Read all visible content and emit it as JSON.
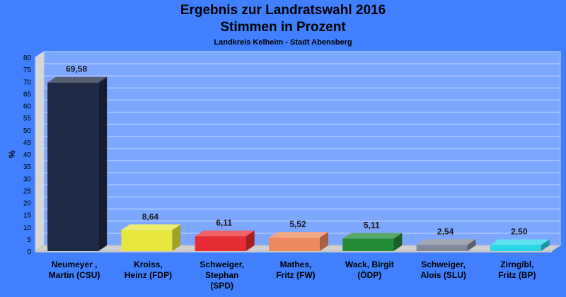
{
  "chart_data": {
    "type": "bar",
    "title": "Ergebnis zur Landratswahl 2016",
    "title2": "Stimmen in Prozent",
    "subtitle": "Landkreis Kelheim - Stadt Abensberg",
    "ylabel": "%",
    "xlabel": "",
    "ylim": [
      0,
      80
    ],
    "yticks": [
      "0",
      "5",
      "10",
      "15",
      "20",
      "25",
      "30",
      "35",
      "40",
      "45",
      "50",
      "55",
      "60",
      "65",
      "70",
      "75",
      "80"
    ],
    "grid": true,
    "categories": [
      [
        "Neumeyer ,",
        "Martin (CSU)"
      ],
      [
        "Kroiss,",
        "Heinz (FDP)"
      ],
      [
        "Schweiger,",
        "Stephan",
        "(SPD)"
      ],
      [
        "Mathes,",
        "Fritz (FW)"
      ],
      [
        "Wack, Birgit",
        "(ÖDP)"
      ],
      [
        "Schweiger,",
        "Alois (SLU)"
      ],
      [
        "Zirngibl,",
        "Fritz (BP)"
      ]
    ],
    "values": [
      69.58,
      8.64,
      6.11,
      5.52,
      5.11,
      2.54,
      2.5
    ],
    "value_labels": [
      "69,58",
      "8,64",
      "6,11",
      "5,52",
      "5,11",
      "2,54",
      "2,50"
    ],
    "colors": [
      "#1f2a44",
      "#e6e63c",
      "#e82c34",
      "#ee8a5e",
      "#228b36",
      "#80899a",
      "#2ad6e6"
    ]
  }
}
